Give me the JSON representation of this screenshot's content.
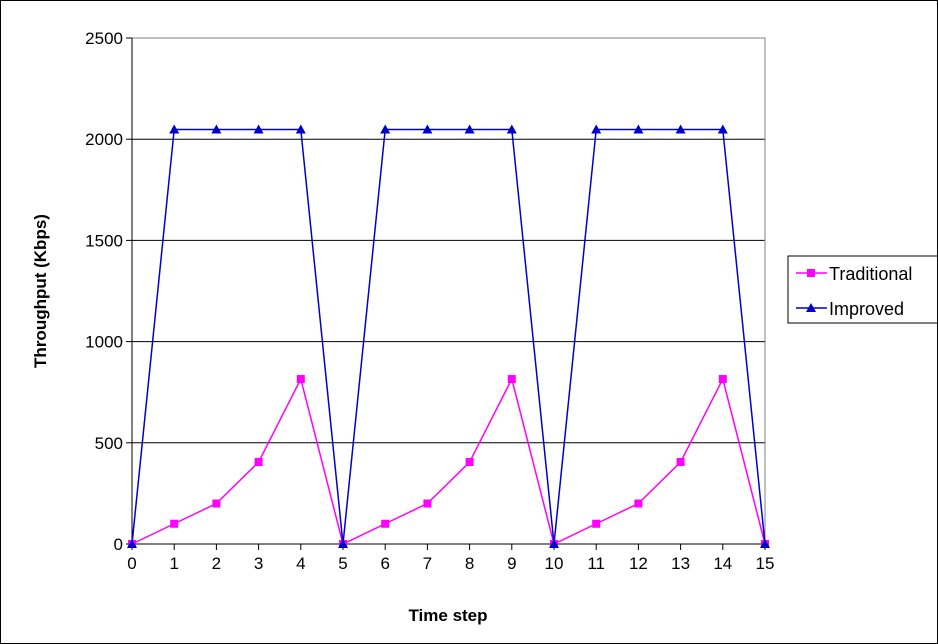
{
  "chart_data": {
    "type": "line",
    "title": "",
    "xlabel": "Time step",
    "ylabel": "Throughput (Kbps)",
    "x": [
      0,
      1,
      2,
      3,
      4,
      5,
      6,
      7,
      8,
      9,
      10,
      11,
      12,
      13,
      14,
      15
    ],
    "xlim": [
      0,
      15
    ],
    "ylim": [
      0,
      2500
    ],
    "yticks": [
      0,
      500,
      1000,
      1500,
      2000,
      2500
    ],
    "grid": "horizontal",
    "legend_position": "right",
    "series": [
      {
        "name": "Traditional",
        "marker": "square",
        "color": "#FF00FF",
        "values": [
          0,
          100,
          200,
          405,
          815,
          0,
          100,
          200,
          405,
          815,
          0,
          100,
          200,
          405,
          815,
          0
        ]
      },
      {
        "name": "Improved",
        "marker": "triangle",
        "color": "#0000CC",
        "values": [
          0,
          2048,
          2048,
          2048,
          2048,
          0,
          2048,
          2048,
          2048,
          2048,
          0,
          2048,
          2048,
          2048,
          2048,
          0
        ]
      }
    ]
  }
}
